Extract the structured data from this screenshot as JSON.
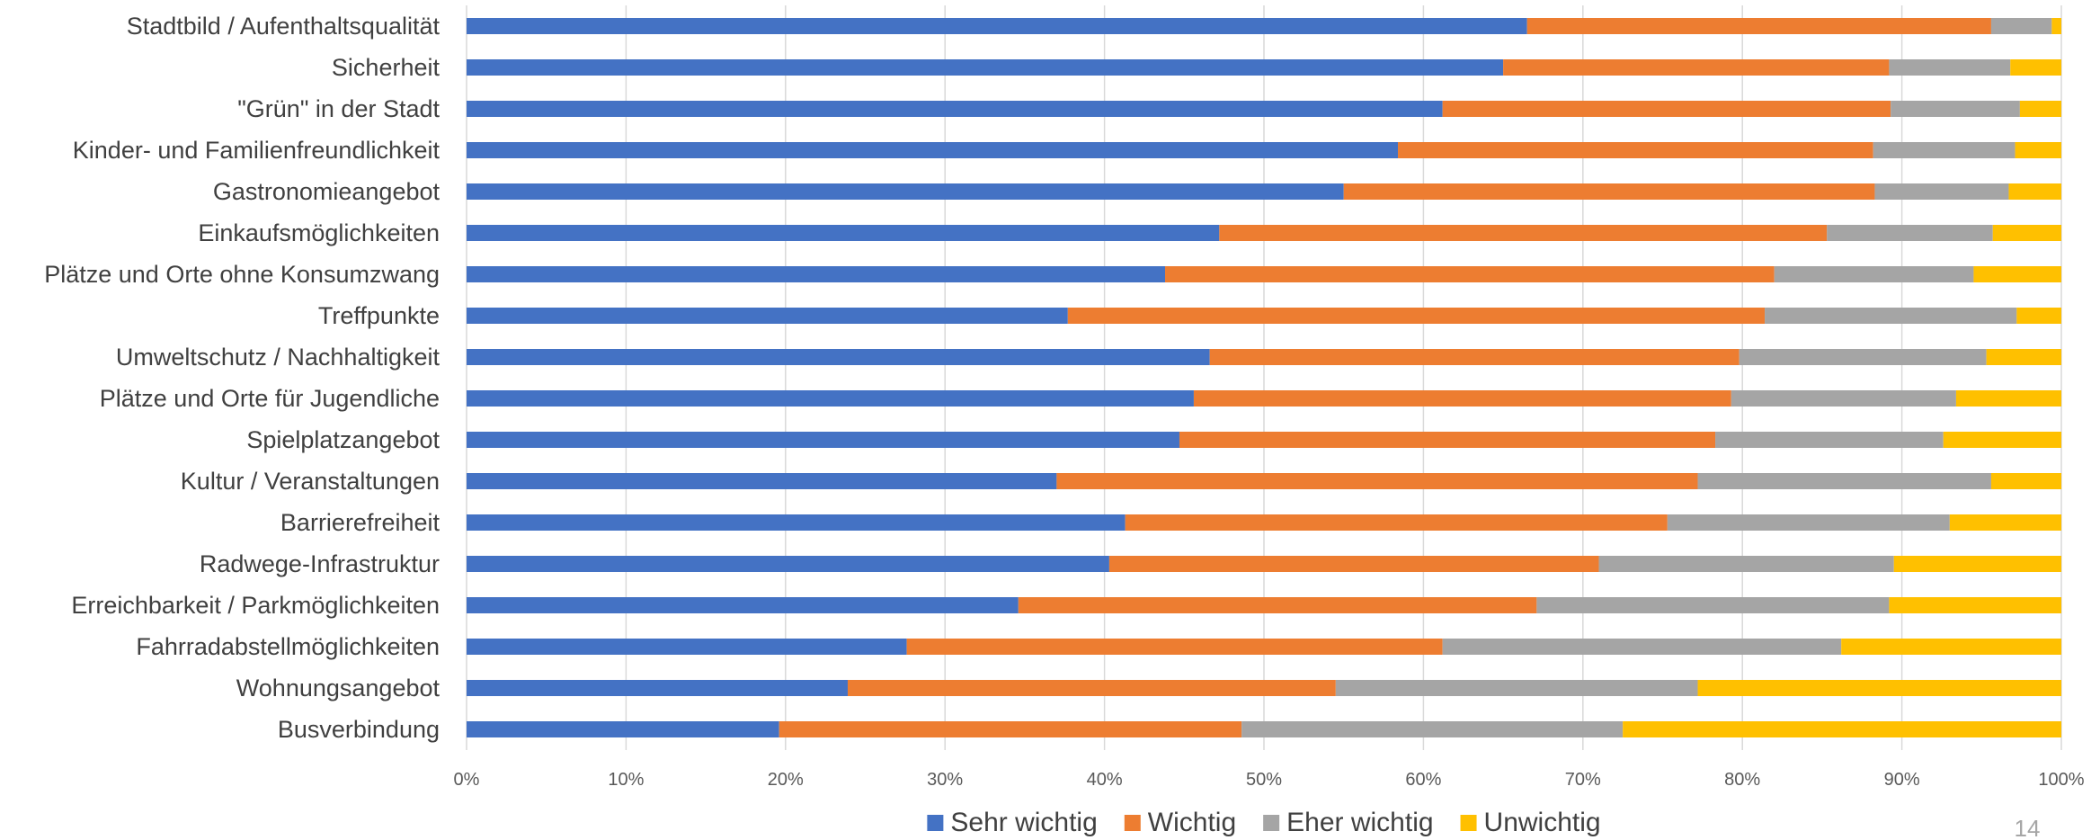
{
  "chart_data": {
    "type": "bar",
    "orientation": "horizontal",
    "stacked": "percent",
    "categories": [
      "Stadtbild / Aufenthaltsqualität",
      "Sicherheit",
      "\"Grün\" in der Stadt",
      "Kinder- und Familienfreundlichkeit",
      "Gastronomieangebot",
      "Einkaufsmöglichkeiten",
      "Plätze und Orte ohne Konsumzwang",
      "Treffpunkte",
      "Umweltschutz / Nachhaltigkeit",
      "Plätze und Orte für Jugendliche",
      "Spielplatzangebot",
      "Kultur / Veranstaltungen",
      "Barrierefreiheit",
      "Radwege-Infrastruktur",
      "Erreichbarkeit / Parkmöglichkeiten",
      "Fahrradabstellmöglichkeiten",
      "Wohnungsangebot",
      "Busverbindung"
    ],
    "series": [
      {
        "name": "Sehr wichtig",
        "color": "#4472C4",
        "values": [
          66.5,
          65.0,
          61.2,
          58.4,
          55.0,
          47.2,
          43.8,
          37.7,
          46.6,
          45.6,
          44.7,
          37.0,
          41.3,
          40.3,
          34.6,
          27.6,
          23.9,
          19.6
        ]
      },
      {
        "name": "Wichtig",
        "color": "#ED7D31",
        "values": [
          29.1,
          24.2,
          28.1,
          29.8,
          33.3,
          38.1,
          38.2,
          43.7,
          33.2,
          33.7,
          33.6,
          40.2,
          34.0,
          30.7,
          32.5,
          33.6,
          30.6,
          29.0
        ]
      },
      {
        "name": "Eher wichtig",
        "color": "#A5A5A5",
        "values": [
          3.8,
          7.6,
          8.1,
          8.9,
          8.4,
          10.4,
          12.5,
          15.8,
          15.5,
          14.1,
          14.3,
          18.4,
          17.7,
          18.5,
          22.1,
          25.0,
          22.7,
          23.9
        ]
      },
      {
        "name": "Unwichtig",
        "color": "#FFC000",
        "values": [
          0.6,
          3.2,
          2.6,
          2.9,
          3.3,
          4.3,
          5.5,
          2.8,
          4.7,
          6.6,
          7.4,
          4.4,
          7.0,
          10.5,
          10.8,
          13.8,
          22.8,
          27.5
        ]
      }
    ],
    "x_ticks": [
      "0%",
      "10%",
      "20%",
      "30%",
      "40%",
      "50%",
      "60%",
      "70%",
      "80%",
      "90%",
      "100%"
    ],
    "xlim": [
      0,
      100
    ],
    "grid": "vertical",
    "legend_position": "bottom",
    "title": "",
    "xlabel": "",
    "ylabel": ""
  },
  "page_number": "14"
}
